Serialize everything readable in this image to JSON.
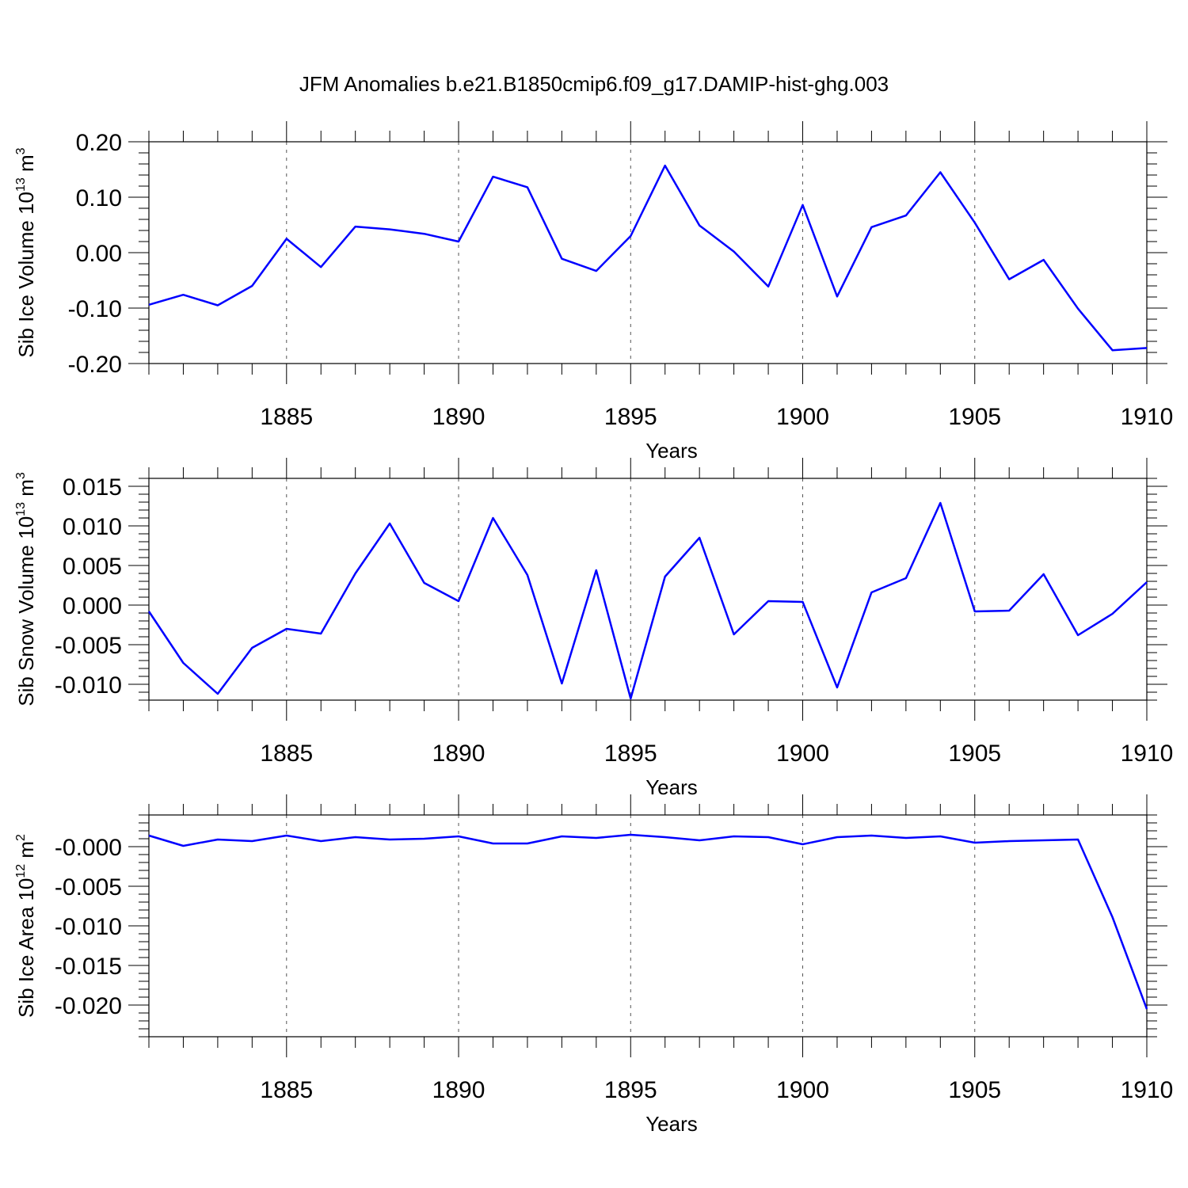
{
  "title": "JFM Anomalies b.e21.B1850cmip6.f09_g17.DAMIP-hist-ghg.003",
  "chart_data": [
    {
      "type": "line",
      "name": "ice-volume",
      "ylabel_main": "Sib Ice Volume 10",
      "ylabel_exp": "13",
      "ylabel_unit": " m",
      "ylabel_unit_exp": "3",
      "xlabel": "Years",
      "xlim": [
        1881,
        1910
      ],
      "ylim": [
        -0.2,
        0.2
      ],
      "x_ticks": [
        1885,
        1890,
        1895,
        1900,
        1905,
        1910
      ],
      "x_tick_labels": [
        "1885",
        "1890",
        "1895",
        "1900",
        "1905",
        "1910"
      ],
      "y_ticks": [
        0.2,
        0.1,
        0.0,
        -0.1,
        -0.2
      ],
      "y_tick_labels": [
        "0.20",
        "0.10",
        "0.00",
        "-0.10",
        "-0.20"
      ],
      "color": "#0000ff",
      "x": [
        1881,
        1882,
        1883,
        1884,
        1885,
        1886,
        1887,
        1888,
        1889,
        1890,
        1891,
        1892,
        1893,
        1894,
        1895,
        1896,
        1897,
        1898,
        1899,
        1900,
        1901,
        1902,
        1903,
        1904,
        1905,
        1906,
        1907,
        1908,
        1909,
        1910
      ],
      "y": [
        -0.094,
        -0.076,
        -0.095,
        -0.06,
        0.025,
        -0.026,
        0.047,
        0.042,
        0.034,
        0.02,
        0.137,
        0.118,
        -0.011,
        -0.033,
        0.03,
        0.157,
        0.049,
        0.002,
        -0.061,
        0.086,
        -0.079,
        0.046,
        0.067,
        0.145,
        0.054,
        -0.048,
        -0.013,
        -0.101,
        -0.176,
        -0.172
      ]
    },
    {
      "type": "line",
      "name": "snow-volume",
      "ylabel_main": "Sib Snow Volume 10",
      "ylabel_exp": "13",
      "ylabel_unit": " m",
      "ylabel_unit_exp": "3",
      "xlabel": "Years",
      "xlim": [
        1881,
        1910
      ],
      "ylim": [
        -0.012,
        0.016
      ],
      "x_ticks": [
        1885,
        1890,
        1895,
        1900,
        1905,
        1910
      ],
      "x_tick_labels": [
        "1885",
        "1890",
        "1895",
        "1900",
        "1905",
        "1910"
      ],
      "y_ticks": [
        0.015,
        0.01,
        0.005,
        0.0,
        -0.005,
        -0.01
      ],
      "y_tick_labels": [
        "0.015",
        "0.010",
        "0.005",
        "0.000",
        "-0.005",
        "-0.010"
      ],
      "color": "#0000ff",
      "x": [
        1881,
        1882,
        1883,
        1884,
        1885,
        1886,
        1887,
        1888,
        1889,
        1890,
        1891,
        1892,
        1893,
        1894,
        1895,
        1896,
        1897,
        1898,
        1899,
        1900,
        1901,
        1902,
        1903,
        1904,
        1905,
        1906,
        1907,
        1908,
        1909,
        1910
      ],
      "y": [
        -0.0008,
        -0.0073,
        -0.0112,
        -0.0054,
        -0.003,
        -0.0036,
        0.004,
        0.0103,
        0.0028,
        0.0005,
        0.011,
        0.0038,
        -0.0099,
        0.0044,
        -0.0118,
        0.0036,
        0.0085,
        -0.0037,
        0.0005,
        0.0004,
        -0.0104,
        0.0016,
        0.0034,
        0.0129,
        -0.0008,
        -0.0007,
        0.0039,
        -0.0038,
        -0.0011,
        0.0029
      ]
    },
    {
      "type": "line",
      "name": "ice-area",
      "ylabel_main": "Sib Ice Area 10",
      "ylabel_exp": "12",
      "ylabel_unit": " m",
      "ylabel_unit_exp": "2",
      "xlabel": "Years",
      "xlim": [
        1881,
        1910
      ],
      "ylim": [
        -0.024,
        0.004
      ],
      "x_ticks": [
        1885,
        1890,
        1895,
        1900,
        1905,
        1910
      ],
      "x_tick_labels": [
        "1885",
        "1890",
        "1895",
        "1900",
        "1905",
        "1910"
      ],
      "y_ticks": [
        0.0,
        -0.005,
        -0.01,
        -0.015,
        -0.02
      ],
      "y_tick_labels": [
        "-0.000",
        "-0.005",
        "-0.010",
        "-0.015",
        "-0.020"
      ],
      "color": "#0000ff",
      "x": [
        1881,
        1882,
        1883,
        1884,
        1885,
        1886,
        1887,
        1888,
        1889,
        1890,
        1891,
        1892,
        1893,
        1894,
        1895,
        1896,
        1897,
        1898,
        1899,
        1900,
        1901,
        1902,
        1903,
        1904,
        1905,
        1906,
        1907,
        1908,
        1909,
        1910
      ],
      "y": [
        0.0014,
        0.0001,
        0.0009,
        0.0007,
        0.0014,
        0.0007,
        0.0012,
        0.0009,
        0.001,
        0.0013,
        0.0004,
        0.0004,
        0.0013,
        0.0011,
        0.0015,
        0.0012,
        0.0008,
        0.0013,
        0.0012,
        0.0003,
        0.0012,
        0.0014,
        0.0011,
        0.0013,
        0.0005,
        0.0007,
        0.0008,
        0.0009,
        -0.0089,
        -0.0205
      ]
    }
  ]
}
